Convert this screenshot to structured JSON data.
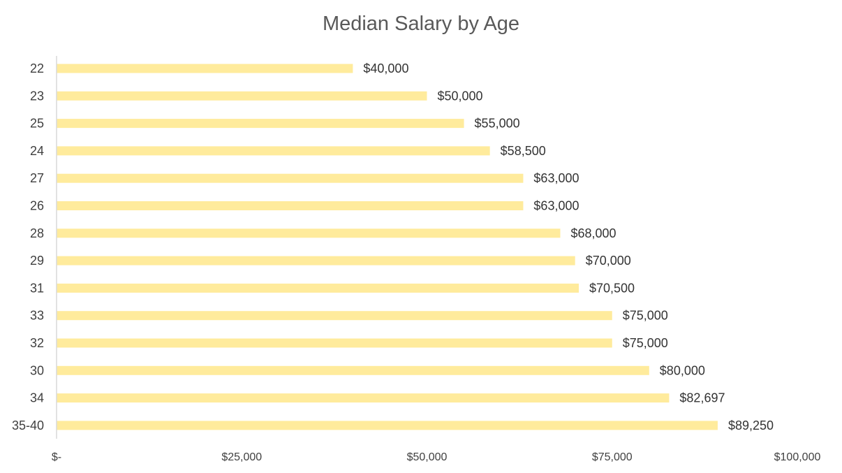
{
  "chart_data": {
    "type": "bar",
    "orientation": "horizontal",
    "title": "Median Salary by Age",
    "categories": [
      "22",
      "23",
      "25",
      "24",
      "27",
      "26",
      "28",
      "29",
      "31",
      "33",
      "32",
      "30",
      "34",
      "35-40"
    ],
    "values": [
      40000,
      50000,
      55000,
      58500,
      63000,
      63000,
      68000,
      70000,
      70500,
      75000,
      75000,
      80000,
      82697,
      89250
    ],
    "value_labels": [
      "$40,000",
      "$50,000",
      "$55,000",
      "$58,500",
      "$63,000",
      "$63,000",
      "$68,000",
      "$70,000",
      "$70,500",
      "$75,000",
      "$75,000",
      "$80,000",
      "$82,697",
      "$89,250"
    ],
    "x_ticks": [
      0,
      25000,
      50000,
      75000,
      100000
    ],
    "x_tick_labels": [
      "$-",
      "$25,000",
      "$50,000",
      "$75,000",
      "$100,000"
    ],
    "xlim": [
      0,
      100000
    ],
    "xlabel": "",
    "ylabel": "",
    "grid": false,
    "legend": "none",
    "bar_color": "#FFEB9C",
    "axis_color": "#D9D9D9"
  }
}
